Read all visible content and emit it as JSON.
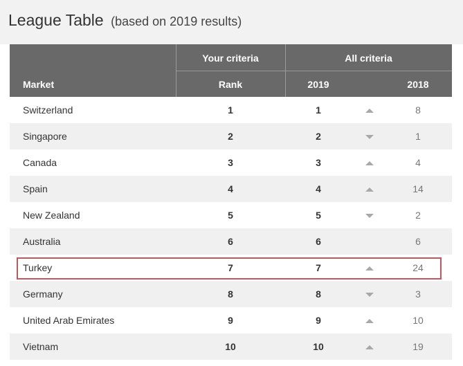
{
  "title": "League Table",
  "subtitle": "(based on 2019 results)",
  "header": {
    "your_criteria": "Your criteria",
    "all_criteria": "All criteria",
    "market": "Market",
    "rank": "Rank",
    "col_2019": "2019",
    "col_2018": "2018"
  },
  "highlight_color": "#c0575f",
  "header_color": "#696969",
  "rows": [
    {
      "market": "Switzerland",
      "rank": "1",
      "y2019": "1",
      "trend": "up",
      "y2018": "8"
    },
    {
      "market": "Singapore",
      "rank": "2",
      "y2019": "2",
      "trend": "down",
      "y2018": "1"
    },
    {
      "market": "Canada",
      "rank": "3",
      "y2019": "3",
      "trend": "up",
      "y2018": "4"
    },
    {
      "market": "Spain",
      "rank": "4",
      "y2019": "4",
      "trend": "up",
      "y2018": "14"
    },
    {
      "market": "New Zealand",
      "rank": "5",
      "y2019": "5",
      "trend": "down",
      "y2018": "2"
    },
    {
      "market": "Australia",
      "rank": "6",
      "y2019": "6",
      "trend": "none",
      "y2018": "6"
    },
    {
      "market": "Turkey",
      "rank": "7",
      "y2019": "7",
      "trend": "up",
      "y2018": "24",
      "highlighted": true
    },
    {
      "market": "Germany",
      "rank": "8",
      "y2019": "8",
      "trend": "down",
      "y2018": "3"
    },
    {
      "market": "United Arab Emirates",
      "rank": "9",
      "y2019": "9",
      "trend": "up",
      "y2018": "10"
    },
    {
      "market": "Vietnam",
      "rank": "10",
      "y2019": "10",
      "trend": "up",
      "y2018": "19"
    }
  ]
}
